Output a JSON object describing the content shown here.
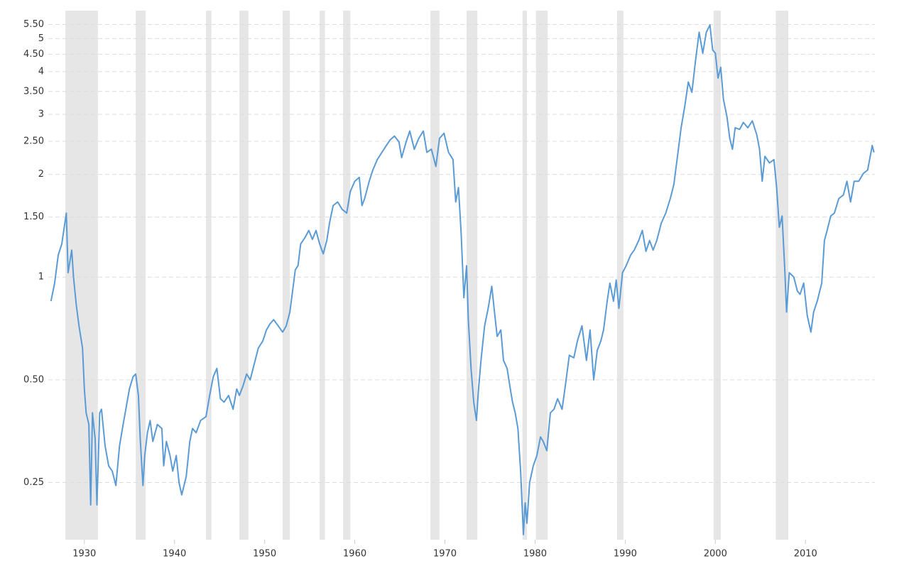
{
  "chart_data": {
    "type": "line",
    "log_scale": true,
    "grid": true,
    "color": "#5b9bd5",
    "band_color": "#e6e6e6",
    "xlim": [
      1926,
      2017.7
    ],
    "ylim": [
      0.17,
      5.7
    ],
    "xticks": [
      1930,
      1940,
      1950,
      1960,
      1970,
      1980,
      1990,
      2000,
      2010
    ],
    "yticks": [
      0.25,
      {
        "value": 0.5,
        "label": "0.50"
      },
      1,
      {
        "value": 1.5,
        "label": "1.50"
      },
      2,
      {
        "value": 2.5,
        "label": "2.50"
      },
      3,
      {
        "value": 3.5,
        "label": "3.50"
      },
      4,
      {
        "value": 4.5,
        "label": "4.50"
      },
      5,
      {
        "value": 5.5,
        "label": "5.50"
      }
    ],
    "recession_bands": [
      [
        1927.9,
        1931.5
      ],
      [
        1935.7,
        1936.8
      ],
      [
        1943.5,
        1944.1
      ],
      [
        1947.2,
        1948.2
      ],
      [
        1952.0,
        1952.8
      ],
      [
        1956.1,
        1956.7
      ],
      [
        1958.7,
        1959.5
      ],
      [
        1968.4,
        1969.4
      ],
      [
        1972.4,
        1973.6
      ],
      [
        1978.6,
        1979.1
      ],
      [
        1980.1,
        1981.4
      ],
      [
        1989.1,
        1989.8
      ],
      [
        1999.8,
        2000.6
      ],
      [
        2006.7,
        2008.1
      ]
    ],
    "x": [
      1926.3,
      1926.7,
      1927.1,
      1927.5,
      1928.0,
      1928.2,
      1928.6,
      1928.8,
      1929.1,
      1929.4,
      1929.8,
      1930.0,
      1930.2,
      1930.5,
      1930.7,
      1930.9,
      1931.2,
      1931.4,
      1931.7,
      1931.9,
      1932.3,
      1932.7,
      1933.1,
      1933.5,
      1933.9,
      1934.3,
      1934.6,
      1935.0,
      1935.4,
      1935.7,
      1936.0,
      1936.2,
      1936.5,
      1936.7,
      1937.0,
      1937.3,
      1937.6,
      1938.1,
      1938.6,
      1938.8,
      1939.1,
      1939.5,
      1939.8,
      1940.2,
      1940.5,
      1940.8,
      1941.3,
      1941.7,
      1942.0,
      1942.4,
      1942.9,
      1943.5,
      1943.9,
      1944.3,
      1944.7,
      1945.1,
      1945.5,
      1946.0,
      1946.5,
      1946.9,
      1947.2,
      1947.6,
      1948.0,
      1948.4,
      1948.8,
      1949.3,
      1949.8,
      1950.2,
      1950.6,
      1951.0,
      1951.5,
      1952.0,
      1952.4,
      1952.8,
      1953.1,
      1953.4,
      1953.7,
      1954.0,
      1954.5,
      1954.9,
      1955.3,
      1955.7,
      1956.1,
      1956.5,
      1956.9,
      1957.2,
      1957.6,
      1958.1,
      1958.6,
      1959.1,
      1959.5,
      1960.0,
      1960.5,
      1960.8,
      1961.1,
      1961.6,
      1962.0,
      1962.5,
      1963.0,
      1963.5,
      1963.9,
      1964.4,
      1964.9,
      1965.2,
      1965.7,
      1966.1,
      1966.6,
      1967.1,
      1967.6,
      1968.0,
      1968.5,
      1969.0,
      1969.4,
      1969.9,
      1970.4,
      1970.9,
      1971.2,
      1971.5,
      1971.8,
      1972.1,
      1972.4,
      1972.6,
      1972.9,
      1973.2,
      1973.5,
      1973.7,
      1974.0,
      1974.4,
      1974.8,
      1975.2,
      1975.5,
      1975.8,
      1976.2,
      1976.5,
      1976.9,
      1977.2,
      1977.5,
      1977.8,
      1978.1,
      1978.4,
      1978.7,
      1978.9,
      1979.1,
      1979.4,
      1979.8,
      1980.2,
      1980.6,
      1980.9,
      1981.3,
      1981.7,
      1982.1,
      1982.5,
      1983.0,
      1983.4,
      1983.8,
      1984.3,
      1984.7,
      1985.2,
      1985.7,
      1986.1,
      1986.5,
      1986.9,
      1987.3,
      1987.6,
      1988.0,
      1988.3,
      1988.7,
      1989.0,
      1989.3,
      1989.7,
      1990.1,
      1990.6,
      1991.0,
      1991.5,
      1991.9,
      1992.3,
      1992.7,
      1993.1,
      1993.5,
      1994.0,
      1994.5,
      1995.0,
      1995.4,
      1995.8,
      1996.2,
      1996.6,
      1997.0,
      1997.4,
      1997.8,
      1998.2,
      1998.6,
      1999.0,
      1999.4,
      1999.7,
      2000.0,
      2000.3,
      2000.6,
      2000.9,
      2001.3,
      2001.6,
      2001.9,
      2002.2,
      2002.7,
      2003.1,
      2003.6,
      2004.1,
      2004.6,
      2004.9,
      2005.2,
      2005.5,
      2006.0,
      2006.5,
      2006.8,
      2007.1,
      2007.4,
      2007.7,
      2007.9,
      2008.2,
      2008.7,
      2009.1,
      2009.4,
      2009.8,
      2010.2,
      2010.6,
      2010.9,
      2011.3,
      2011.8,
      2012.1,
      2012.4,
      2012.8,
      2013.2,
      2013.7,
      2014.2,
      2014.6,
      2015.0,
      2015.4,
      2015.9,
      2016.4,
      2016.9,
      2017.4,
      2017.6
    ],
    "values": [
      0.85,
      0.96,
      1.16,
      1.25,
      1.54,
      1.03,
      1.2,
      1.0,
      0.83,
      0.72,
      0.62,
      0.47,
      0.4,
      0.37,
      0.215,
      0.4,
      0.335,
      0.215,
      0.4,
      0.41,
      0.32,
      0.28,
      0.27,
      0.245,
      0.32,
      0.37,
      0.41,
      0.47,
      0.51,
      0.52,
      0.45,
      0.335,
      0.245,
      0.3,
      0.35,
      0.38,
      0.33,
      0.37,
      0.36,
      0.28,
      0.33,
      0.3,
      0.27,
      0.3,
      0.25,
      0.23,
      0.26,
      0.33,
      0.36,
      0.35,
      0.38,
      0.39,
      0.45,
      0.51,
      0.54,
      0.44,
      0.43,
      0.45,
      0.41,
      0.47,
      0.45,
      0.48,
      0.52,
      0.5,
      0.55,
      0.62,
      0.65,
      0.7,
      0.73,
      0.75,
      0.72,
      0.69,
      0.72,
      0.79,
      0.91,
      1.05,
      1.08,
      1.25,
      1.31,
      1.37,
      1.29,
      1.37,
      1.25,
      1.17,
      1.28,
      1.44,
      1.62,
      1.66,
      1.58,
      1.54,
      1.78,
      1.91,
      1.96,
      1.62,
      1.7,
      1.91,
      2.06,
      2.21,
      2.32,
      2.43,
      2.52,
      2.59,
      2.49,
      2.24,
      2.49,
      2.68,
      2.37,
      2.55,
      2.68,
      2.32,
      2.37,
      2.11,
      2.55,
      2.64,
      2.32,
      2.21,
      1.66,
      1.83,
      1.34,
      0.87,
      1.08,
      0.75,
      0.54,
      0.43,
      0.38,
      0.46,
      0.57,
      0.72,
      0.81,
      0.94,
      0.79,
      0.67,
      0.7,
      0.57,
      0.54,
      0.48,
      0.43,
      0.4,
      0.36,
      0.27,
      0.176,
      0.218,
      0.19,
      0.25,
      0.28,
      0.3,
      0.34,
      0.33,
      0.31,
      0.4,
      0.41,
      0.44,
      0.41,
      0.49,
      0.59,
      0.58,
      0.65,
      0.72,
      0.57,
      0.7,
      0.5,
      0.61,
      0.65,
      0.7,
      0.85,
      0.96,
      0.85,
      0.98,
      0.81,
      1.03,
      1.08,
      1.16,
      1.2,
      1.28,
      1.37,
      1.19,
      1.28,
      1.2,
      1.28,
      1.44,
      1.54,
      1.7,
      1.87,
      2.26,
      2.74,
      3.16,
      3.73,
      3.48,
      4.31,
      5.22,
      4.53,
      5.22,
      5.48,
      4.63,
      4.53,
      3.83,
      4.12,
      3.32,
      2.94,
      2.55,
      2.37,
      2.74,
      2.71,
      2.84,
      2.74,
      2.87,
      2.61,
      2.37,
      1.91,
      2.26,
      2.16,
      2.21,
      1.83,
      1.4,
      1.51,
      1.05,
      0.79,
      1.03,
      1.0,
      0.91,
      0.89,
      0.96,
      0.77,
      0.69,
      0.79,
      0.85,
      0.96,
      1.28,
      1.37,
      1.51,
      1.54,
      1.7,
      1.74,
      1.91,
      1.66,
      1.91,
      1.91,
      2.01,
      2.06,
      2.43,
      2.32
    ]
  }
}
